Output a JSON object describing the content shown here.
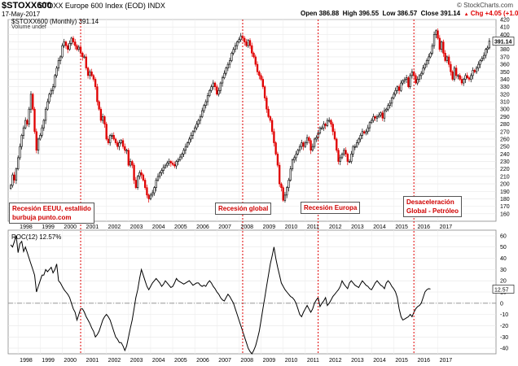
{
  "header": {
    "symbol": "$STOXX600",
    "name": "STOXX Europe 600 Index (EOD)",
    "exchange": "INDX",
    "date": "17-May-2017",
    "ohlc": {
      "open": "Open 386.88",
      "high": "High 396.55",
      "low": "Low 386.57",
      "close": "Close 391.14",
      "chg": "Chg +4.05 (+1.05%)",
      "chg_icon": "up-triangle-icon"
    },
    "credit": "© StockCharts.com"
  },
  "legend": {
    "price": "$STOXX600 (Monthly) 391.14",
    "volume": "Volume undef",
    "roc": "ROC(12) 12.57%"
  },
  "colors": {
    "up": "#000000",
    "down": "#e00000",
    "recession_line": "#e00000",
    "annotation_text": "#d00000",
    "zero_line": "#888888"
  },
  "annotations": [
    {
      "lines": [
        "Recesión EEUU, estallido",
        "burbuja punto.com"
      ]
    },
    {
      "lines": [
        "Recesión global"
      ]
    },
    {
      "lines": [
        "Recesión Europa"
      ]
    },
    {
      "lines": [
        "Desaceleración",
        "Global - Petróleo"
      ]
    }
  ],
  "chart_data": [
    {
      "type": "candlestick",
      "title": "$STOXX600 (Monthly)",
      "x_start": "1997-09",
      "frequency": "monthly",
      "ylim": [
        150,
        420
      ],
      "y_ticks": [
        160,
        170,
        180,
        190,
        200,
        210,
        220,
        230,
        240,
        250,
        260,
        270,
        280,
        290,
        300,
        310,
        320,
        330,
        340,
        350,
        360,
        370,
        380,
        390,
        400,
        410,
        420
      ],
      "last_value": "391.14",
      "x_ticks": [
        "1998",
        "1999",
        "2000",
        "2001",
        "2002",
        "2003",
        "2004",
        "2005",
        "2006",
        "2007",
        "2008",
        "2009",
        "2010",
        "2011",
        "2012",
        "2013",
        "2014",
        "2015",
        "2016",
        "2017"
      ],
      "closes": [
        198,
        212,
        205,
        220,
        235,
        250,
        265,
        275,
        285,
        280,
        300,
        320,
        300,
        270,
        245,
        260,
        265,
        275,
        285,
        300,
        310,
        320,
        325,
        330,
        345,
        355,
        365,
        370,
        385,
        390,
        385,
        380,
        388,
        395,
        390,
        385,
        380,
        383,
        375,
        370,
        370,
        355,
        345,
        350,
        345,
        340,
        330,
        310,
        300,
        285,
        290,
        280,
        260,
        255,
        265,
        265,
        260,
        255,
        250,
        255,
        258,
        250,
        245,
        245,
        225,
        230,
        225,
        205,
        195,
        210,
        215,
        212,
        205,
        195,
        185,
        180,
        185,
        188,
        195,
        205,
        210,
        215,
        218,
        222,
        225,
        228,
        230,
        228,
        226,
        224,
        230,
        232,
        236,
        240,
        245,
        250,
        255,
        260,
        265,
        270,
        275,
        280,
        285,
        290,
        298,
        305,
        310,
        318,
        325,
        330,
        335,
        330,
        320,
        325,
        335,
        342,
        348,
        355,
        360,
        365,
        375,
        380,
        385,
        390,
        393,
        398,
        395,
        390,
        385,
        392,
        385,
        375,
        370,
        360,
        350,
        345,
        340,
        330,
        315,
        300,
        290,
        285,
        270,
        255,
        240,
        225,
        200,
        195,
        178,
        185,
        195,
        205,
        220,
        232,
        235,
        240,
        245,
        250,
        255,
        250,
        255,
        262,
        258,
        245,
        250,
        260,
        262,
        268,
        275,
        275,
        280,
        278,
        285,
        285,
        280,
        270,
        260,
        245,
        230,
        235,
        240,
        245,
        240,
        230,
        230,
        240,
        250,
        250,
        255,
        260,
        265,
        270,
        268,
        270,
        275,
        282,
        285,
        290,
        288,
        290,
        292,
        295,
        288,
        298,
        300,
        305,
        308,
        315,
        320,
        325,
        330,
        325,
        335,
        338,
        340,
        342,
        330,
        345,
        350,
        345,
        335,
        340,
        345,
        348,
        355,
        360,
        365,
        370,
        375,
        385,
        400,
        405,
        395,
        380,
        390,
        375,
        365,
        370,
        360,
        350,
        340,
        355,
        345,
        345,
        340,
        335,
        340,
        345,
        342,
        340,
        345,
        352,
        350,
        355,
        360,
        365,
        368,
        372,
        380,
        382,
        391.14
      ]
    },
    {
      "type": "line",
      "title": "ROC(12)",
      "ylim": [
        -45,
        65
      ],
      "y_ticks": [
        -40,
        -30,
        -20,
        -10,
        0,
        10,
        20,
        30,
        40,
        50,
        60
      ],
      "last_value": "12.57",
      "values": [
        52,
        50,
        55,
        60,
        45,
        53,
        55,
        46,
        50,
        45,
        40,
        35,
        30,
        25,
        10,
        15,
        20,
        25,
        25,
        30,
        28,
        30,
        32,
        27,
        30,
        35,
        20,
        18,
        15,
        12,
        10,
        8,
        5,
        0,
        -5,
        -8,
        -15,
        -10,
        -5,
        -5,
        -8,
        -12,
        -15,
        -18,
        -22,
        -25,
        -30,
        -28,
        -25,
        -20,
        -15,
        -12,
        -10,
        -12,
        -15,
        -20,
        -25,
        -30,
        -32,
        -35,
        -35,
        -38,
        -42,
        -38,
        -30,
        -22,
        -15,
        -5,
        5,
        12,
        22,
        30,
        25,
        20,
        15,
        12,
        15,
        18,
        20,
        22,
        20,
        18,
        15,
        17,
        20,
        18,
        16,
        14,
        15,
        18,
        22,
        20,
        19,
        18,
        17,
        18,
        19,
        20,
        18,
        16,
        17,
        18,
        18,
        16,
        15,
        16,
        15,
        18,
        20,
        18,
        15,
        13,
        10,
        8,
        5,
        3,
        2,
        5,
        8,
        6,
        3,
        0,
        -5,
        -10,
        -15,
        -20,
        -25,
        -30,
        -35,
        -40,
        -43,
        -45,
        -42,
        -38,
        -32,
        -25,
        -15,
        -5,
        5,
        15,
        25,
        35,
        42,
        50,
        40,
        32,
        25,
        18,
        15,
        12,
        10,
        8,
        6,
        5,
        3,
        0,
        -5,
        -10,
        -12,
        -8,
        -5,
        -2,
        -5,
        -8,
        -5,
        0,
        3,
        5,
        -3,
        0,
        2,
        5,
        -2,
        0,
        3,
        6,
        8,
        10,
        12,
        15,
        20,
        17,
        15,
        13,
        18,
        20,
        18,
        16,
        15,
        14,
        17,
        20,
        18,
        16,
        15,
        13,
        12,
        15,
        18,
        20,
        18,
        16,
        15,
        13,
        18,
        20,
        18,
        15,
        13,
        10,
        5,
        -5,
        -12,
        -15,
        -14,
        -13,
        -12,
        -10,
        -12,
        -8,
        -5,
        -3,
        -2,
        0,
        5,
        10,
        12,
        13,
        12.57
      ]
    }
  ]
}
